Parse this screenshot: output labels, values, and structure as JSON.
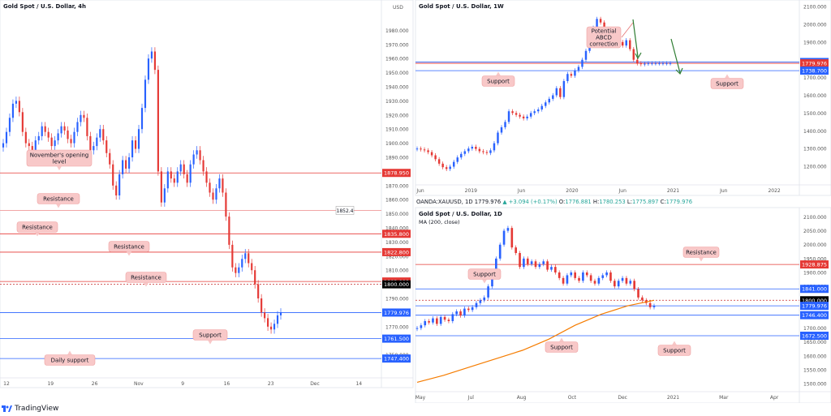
{
  "branding": {
    "name": "TradingView",
    "icon": "tradingview-logo-icon"
  },
  "chart_data": [
    {
      "type": "candlestick",
      "title": "Gold Spot / U.S. Dollar, 4h",
      "currency": "USD",
      "xticks": [
        "12",
        "19",
        "26",
        "Nov",
        "9",
        "16",
        "23",
        "Dec",
        "14"
      ],
      "ylim": [
        1740,
        1990
      ],
      "yticks": [
        1980,
        1970,
        1960,
        1950,
        1940,
        1930,
        1920,
        1910,
        1900,
        1890,
        1880,
        1870,
        1860,
        1850,
        1840,
        1830,
        1820,
        1810,
        1790,
        1780,
        1770,
        1760,
        1750
      ],
      "series": [
        {
          "x": [
            0,
            4,
            8,
            12,
            16,
            20,
            24,
            28,
            32,
            36,
            40,
            44,
            48,
            52,
            56,
            60,
            64,
            68,
            72,
            76,
            80,
            84,
            88,
            92,
            96,
            100,
            104,
            108,
            112,
            116,
            120,
            124,
            128,
            132,
            136,
            140,
            144,
            148,
            152,
            156,
            160,
            164,
            168,
            172,
            176,
            180,
            184,
            188,
            192,
            196,
            200,
            204,
            208,
            212,
            216,
            220,
            224,
            228,
            232,
            236,
            240,
            244,
            248,
            252,
            256,
            260,
            264,
            268,
            272,
            276,
            280,
            284,
            288,
            292,
            296,
            300,
            304,
            308,
            312,
            316,
            320,
            324,
            328,
            332,
            336,
            340,
            344
          ],
          "close": [
            1900,
            1908,
            1918,
            1928,
            1930,
            1922,
            1908,
            1900,
            1898,
            1895,
            1902,
            1905,
            1912,
            1908,
            1904,
            1898,
            1902,
            1907,
            1912,
            1909,
            1903,
            1900,
            1908,
            1915,
            1920,
            1918,
            1905,
            1895,
            1898,
            1904,
            1910,
            1902,
            1893,
            1885,
            1870,
            1863,
            1878,
            1888,
            1882,
            1890,
            1902,
            1896,
            1910,
            1925,
            1945,
            1960,
            1965,
            1952,
            1880,
            1858,
            1868,
            1880,
            1875,
            1872,
            1880,
            1885,
            1878,
            1872,
            1885,
            1892,
            1895,
            1888,
            1880,
            1872,
            1865,
            1860,
            1868,
            1875,
            1865,
            1848,
            1828,
            1812,
            1808,
            1812,
            1818,
            1822,
            1815,
            1810,
            1800,
            1790,
            1780,
            1776,
            1770,
            1768,
            1772,
            1778,
            1780
          ]
        }
      ],
      "levels": [
        {
          "value": 1878.95,
          "label": "1878.950",
          "color": "#e53935"
        },
        {
          "value": 1852.4,
          "label": "1852.4",
          "color": "#ef9a9a"
        },
        {
          "value": 1835.8,
          "label": "1835.800",
          "color": "#e53935"
        },
        {
          "value": 1822.8,
          "label": "1822.800",
          "color": "#e53935"
        },
        {
          "value": 1802.0,
          "label": "1802.000",
          "color": "#e53935"
        },
        {
          "value": 1800.0,
          "label": "1800.000",
          "color": "#000000"
        },
        {
          "value": 1779.976,
          "label": "1779.976",
          "color": "#2962ff"
        },
        {
          "value": 1761.5,
          "label": "1761.500",
          "color": "#2962ff"
        },
        {
          "value": 1747.4,
          "label": "1747.400",
          "color": "#2962ff"
        }
      ],
      "annotations": [
        "November's opening level",
        "Resistance",
        "Resistance",
        "Resistance",
        "Resistance",
        "Support",
        "Daily support"
      ]
    },
    {
      "type": "candlestick",
      "title": "Gold Spot / U.S. Dollar, 1W",
      "xticks": [
        "Jun",
        "2019",
        "Jun",
        "2020",
        "Jun",
        "2021",
        "Jun",
        "2022"
      ],
      "ylim": [
        1100,
        2100
      ],
      "yticks": [
        2100,
        2000,
        1900,
        1800,
        1700,
        1600,
        1500,
        1400,
        1300,
        1200,
        1100
      ],
      "series": [
        {
          "x": [
            0,
            1,
            2,
            3,
            4,
            5,
            6,
            7,
            8,
            9,
            10,
            11,
            12,
            13,
            14,
            15,
            16,
            17,
            18,
            19,
            20,
            21,
            22,
            23,
            24,
            25,
            26,
            27,
            28,
            29,
            30,
            31,
            32,
            33,
            34,
            35,
            36,
            37,
            38,
            39,
            40,
            41,
            42,
            43,
            44,
            45,
            46,
            47,
            48,
            49,
            50,
            51,
            52,
            53,
            54,
            55,
            56,
            57,
            58,
            59,
            60,
            61,
            62,
            63,
            64,
            65,
            66,
            67,
            68,
            69
          ],
          "close": [
            1300,
            1295,
            1290,
            1280,
            1262,
            1240,
            1215,
            1195,
            1185,
            1198,
            1225,
            1250,
            1270,
            1285,
            1300,
            1310,
            1298,
            1285,
            1280,
            1275,
            1290,
            1330,
            1390,
            1420,
            1450,
            1510,
            1500,
            1490,
            1480,
            1470,
            1480,
            1500,
            1510,
            1520,
            1540,
            1560,
            1580,
            1600,
            1640,
            1590,
            1680,
            1720,
            1710,
            1740,
            1760,
            1800,
            1850,
            1900,
            1980,
            2030,
            2010,
            1960,
            1940,
            1920,
            1950,
            1900,
            1880,
            1910,
            1860,
            1800,
            1780,
            1775,
            1778,
            1780,
            1780,
            1780,
            1780,
            1780,
            1780,
            1780
          ]
        }
      ],
      "levels": [
        {
          "value": 1787.4,
          "label": "1787.400",
          "color": "#2962ff"
        },
        {
          "value": 1779.976,
          "label": "1779.976",
          "color": "#e53935"
        },
        {
          "value": 1738.7,
          "label": "1738.700",
          "color": "#2962ff"
        }
      ],
      "annotations": [
        "Potential ABCD correction",
        "Support",
        "Support"
      ]
    },
    {
      "type": "candlestick",
      "title": "Gold Spot / U.S. Dollar, 1D",
      "subtitle": "MA (200, close)",
      "ohlc_line": {
        "symbol": "OANDA:XAUUSD, 1D",
        "last": "1779.976",
        "change": "+3.094 (+0.17%)",
        "open": "1776.881",
        "high": "1780.253",
        "low": "1775.897",
        "close": "1779.976"
      },
      "xticks": [
        "May",
        "Jul",
        "Aug",
        "Oct",
        "Dec",
        "2021",
        "Mar",
        "Apr"
      ],
      "ylim": [
        1480,
        2110
      ],
      "yticks": [
        2100,
        2050,
        2000,
        1950,
        1900,
        1850,
        1800,
        1750,
        1700,
        1650,
        1600,
        1550,
        1500
      ],
      "series": [
        {
          "name": "price",
          "x": [
            0,
            3,
            6,
            9,
            12,
            15,
            18,
            21,
            24,
            27,
            30,
            33,
            36,
            39,
            42,
            45,
            48,
            51,
            54,
            57,
            60,
            63,
            66,
            69,
            72,
            75,
            78,
            81,
            84,
            87,
            90,
            93,
            96,
            99,
            102,
            105,
            108,
            111,
            114,
            117,
            120,
            123,
            126,
            129,
            132,
            135,
            138,
            141,
            144,
            147,
            150,
            153,
            156,
            159,
            162,
            165,
            168,
            171,
            174,
            177,
            180
          ],
          "close": [
            1700,
            1710,
            1725,
            1720,
            1735,
            1715,
            1740,
            1730,
            1725,
            1750,
            1760,
            1745,
            1770,
            1765,
            1775,
            1790,
            1800,
            1810,
            1850,
            1900,
            1950,
            2000,
            2050,
            2060,
            1990,
            1970,
            1920,
            1950,
            1930,
            1940,
            1920,
            1930,
            1940,
            1910,
            1920,
            1900,
            1880,
            1860,
            1890,
            1900,
            1880,
            1870,
            1900,
            1890,
            1870,
            1860,
            1880,
            1890,
            1900,
            1870,
            1850,
            1870,
            1880,
            1860,
            1870,
            1840,
            1810,
            1800,
            1790,
            1775,
            1780
          ]
        },
        {
          "name": "MA (200, close)",
          "x": [
            0,
            20,
            40,
            60,
            80,
            100,
            120,
            140,
            160,
            180
          ],
          "values": [
            1505,
            1530,
            1560,
            1590,
            1620,
            1660,
            1710,
            1750,
            1780,
            1800
          ]
        }
      ],
      "levels": [
        {
          "value": 1928.875,
          "label": "1928.875",
          "color": "#e53935"
        },
        {
          "value": 1841.0,
          "label": "1841.000",
          "color": "#2962ff"
        },
        {
          "value": 1800.0,
          "label": "1800.000",
          "color": "#000000"
        },
        {
          "value": 1779.976,
          "label": "1779.976",
          "color": "#2962ff"
        },
        {
          "value": 1746.4,
          "label": "1746.400",
          "color": "#2962ff"
        },
        {
          "value": 1672.5,
          "label": "1672.500",
          "color": "#2962ff"
        }
      ],
      "annotations": [
        "Resistance",
        "Support",
        "Support",
        "Support"
      ]
    }
  ]
}
